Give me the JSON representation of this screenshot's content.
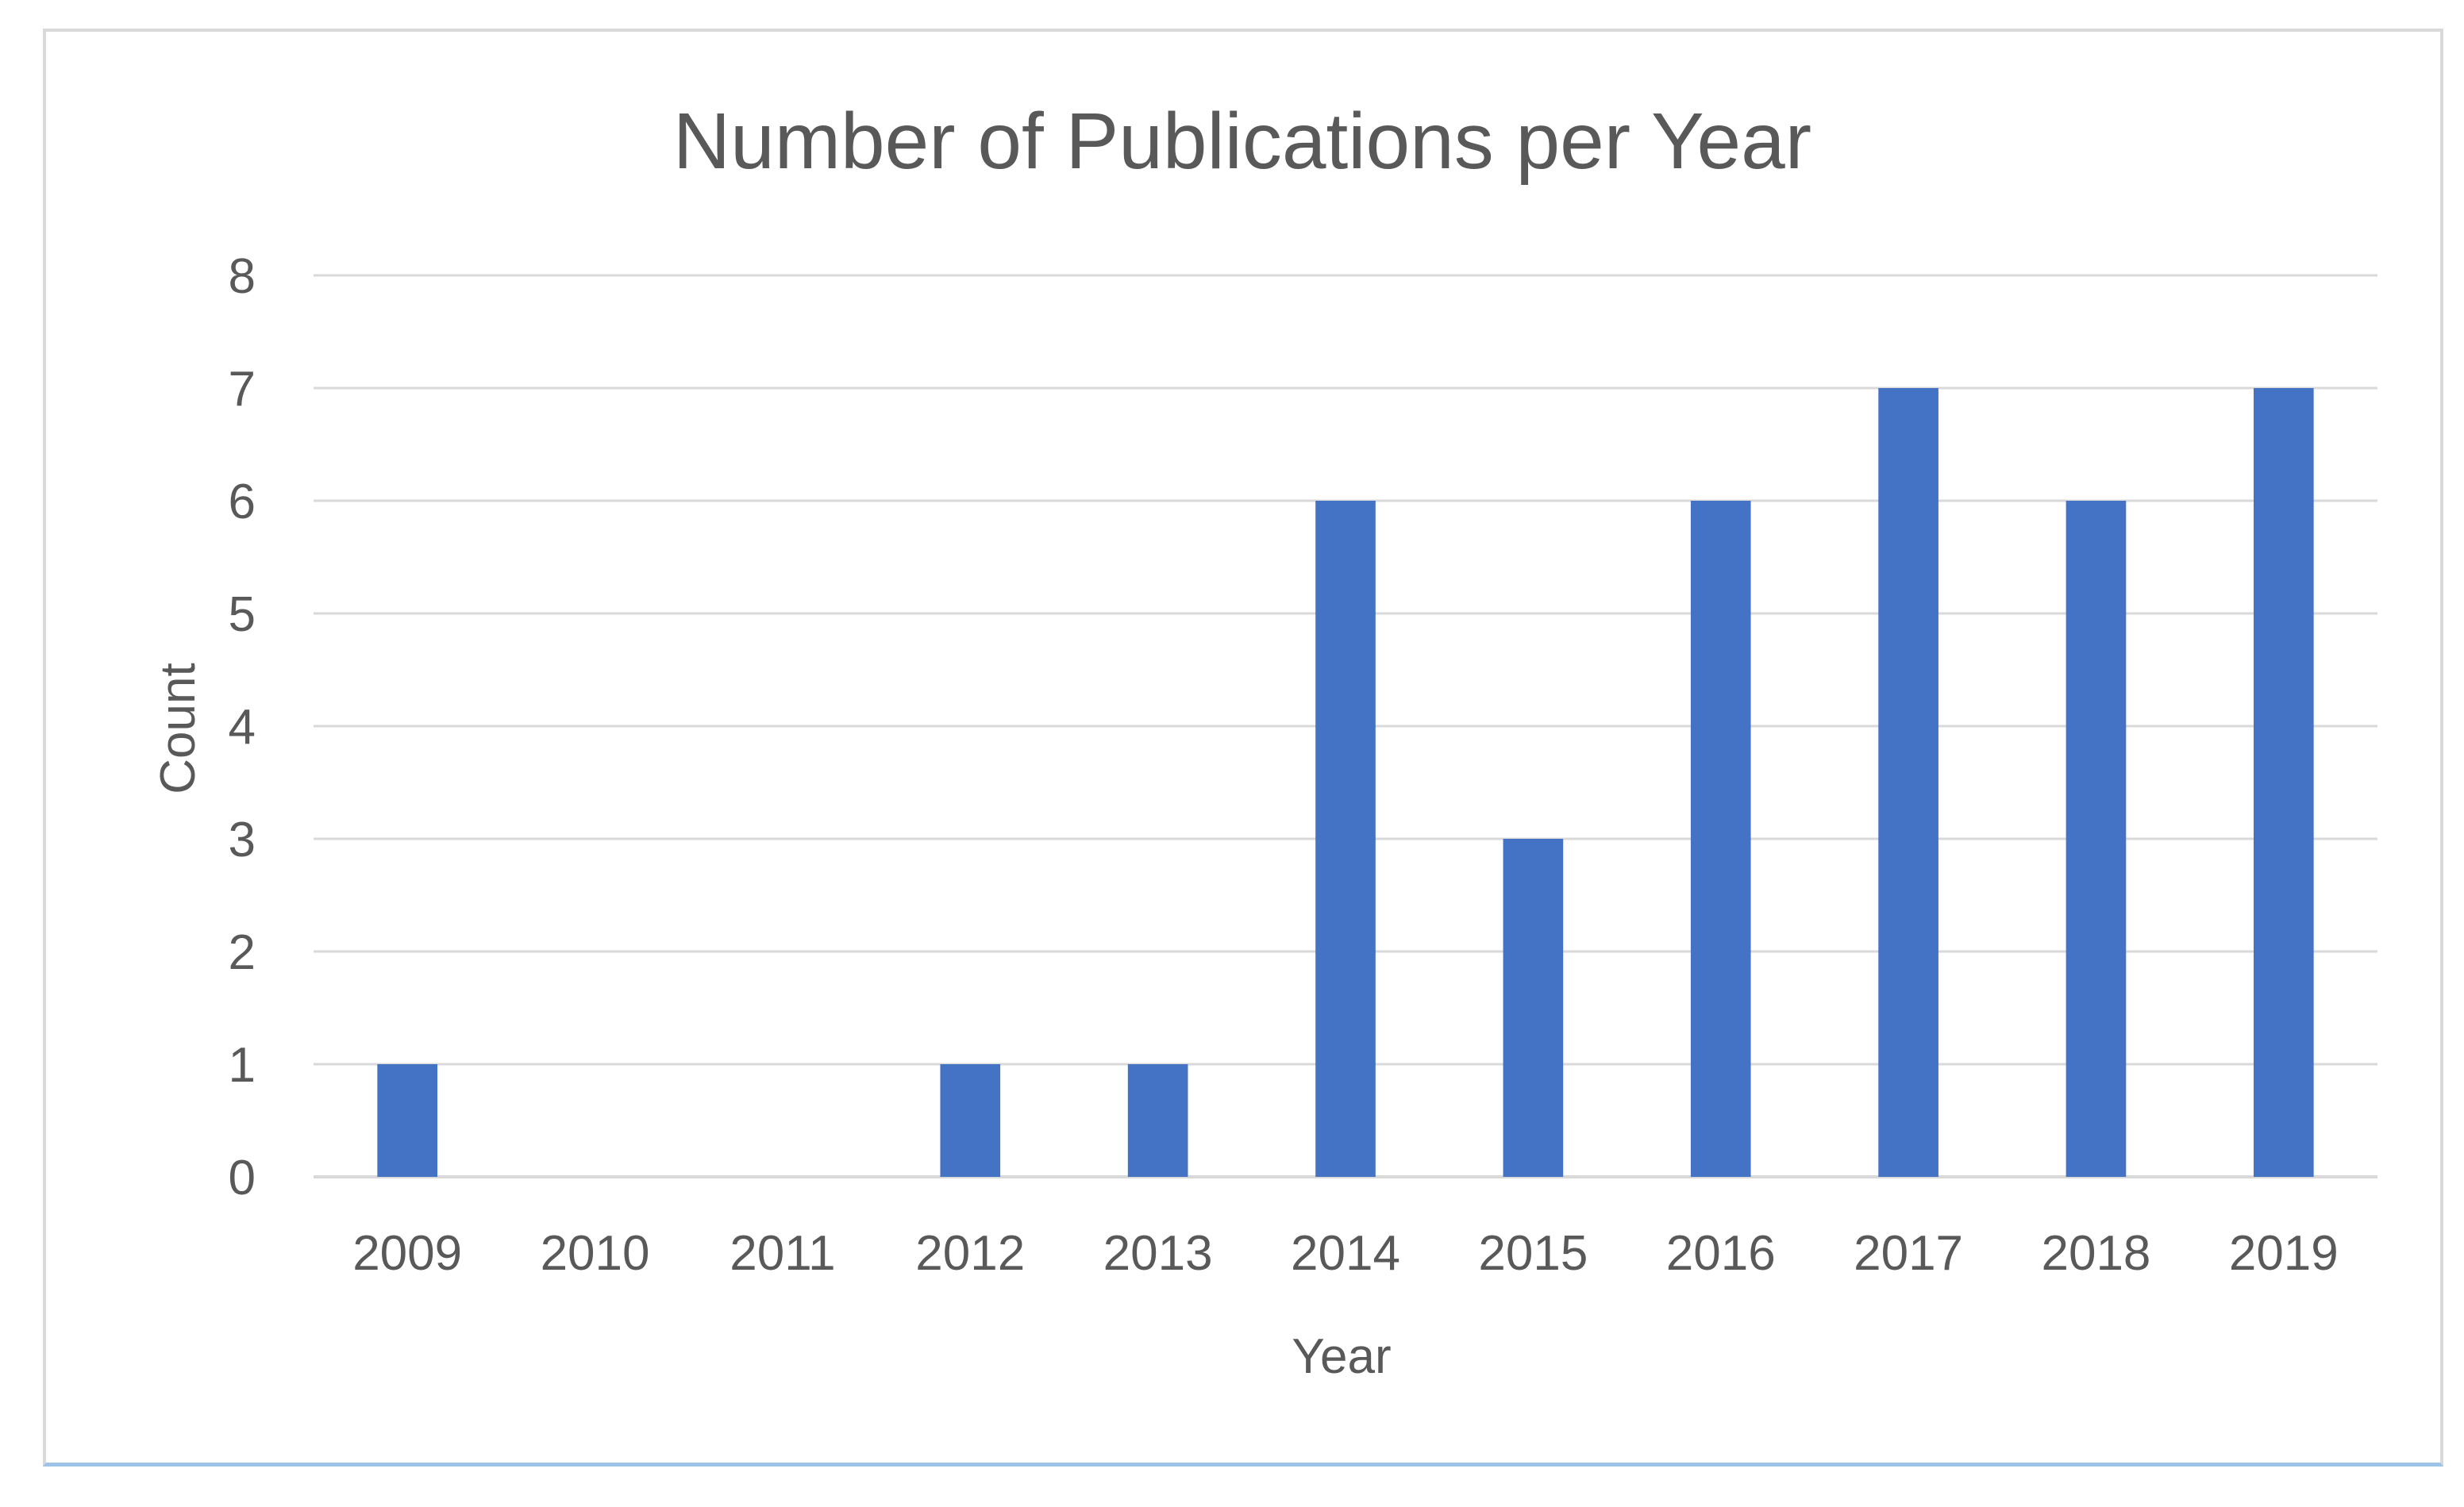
{
  "chart_data": {
    "type": "bar",
    "title": "Number of Publications per Year",
    "xlabel": "Year",
    "ylabel": "Count",
    "categories": [
      "2009",
      "2010",
      "2011",
      "2012",
      "2013",
      "2014",
      "2015",
      "2016",
      "2017",
      "2018",
      "2019"
    ],
    "values": [
      1,
      0,
      0,
      1,
      1,
      6,
      3,
      6,
      7,
      6,
      7
    ],
    "ylim": [
      0,
      8
    ],
    "yticks": [
      0,
      1,
      2,
      3,
      4,
      5,
      6,
      7,
      8
    ],
    "grid": true,
    "legend": "none",
    "bar_color": "#4472c4",
    "grid_color": "#d9d9d9"
  }
}
